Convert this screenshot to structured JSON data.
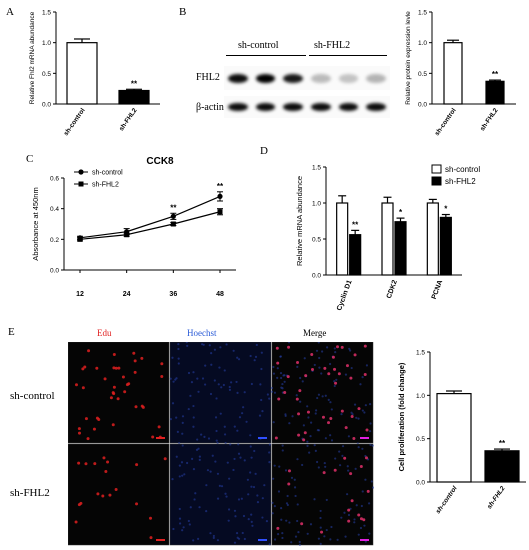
{
  "panels": {
    "A": "A",
    "B": "B",
    "C": "C",
    "D": "D",
    "E": "E"
  },
  "chart_data": [
    {
      "id": "A",
      "type": "bar",
      "categories": [
        "sh-control",
        "sh-FHL2"
      ],
      "values": [
        1.0,
        0.22
      ],
      "errors": [
        0.06,
        0.02
      ],
      "significance": [
        "",
        "**"
      ],
      "fills": [
        "#ffffff",
        "#000000"
      ],
      "ylabel": "Relative Fhl2 mRNA abundance",
      "ylim": [
        0,
        1.5
      ],
      "yticks": [
        "0.0",
        "0.5",
        "1.0",
        "1.5"
      ]
    },
    {
      "id": "B",
      "type": "bar",
      "categories": [
        "sh-control",
        "sh-FHL2"
      ],
      "values": [
        1.0,
        0.37
      ],
      "errors": [
        0.04,
        0.02
      ],
      "significance": [
        "",
        "**"
      ],
      "fills": [
        "#ffffff",
        "#000000"
      ],
      "ylabel": "Relative protein expression levle",
      "ylim": [
        0,
        1.5
      ],
      "yticks": [
        "0.0",
        "0.5",
        "1.0",
        "1.5"
      ]
    },
    {
      "id": "C",
      "type": "line",
      "title": "CCK8",
      "x": [
        "12",
        "24",
        "36",
        "48"
      ],
      "series": [
        {
          "name": "sh-control",
          "marker": "circle",
          "values": [
            0.21,
            0.25,
            0.35,
            0.48
          ],
          "errors": [
            0.01,
            0.02,
            0.02,
            0.03
          ]
        },
        {
          "name": "sh-FHL2",
          "marker": "square",
          "values": [
            0.2,
            0.23,
            0.3,
            0.38
          ],
          "errors": [
            0.01,
            0.01,
            0.01,
            0.02
          ]
        }
      ],
      "significance": [
        "",
        "",
        "**",
        "**"
      ],
      "ylabel": "Absorbance at 450nm",
      "ylim": [
        0.0,
        0.6
      ],
      "yticks": [
        "0.0",
        "0.2",
        "0.4",
        "0.6"
      ],
      "legend": "top-left"
    },
    {
      "id": "D",
      "type": "bar",
      "categories": [
        "Cyclin D1",
        "CDK2",
        "PCNA"
      ],
      "series": [
        {
          "name": "sh-control",
          "fill": "#ffffff",
          "values": [
            1.0,
            1.0,
            1.0
          ],
          "errors": [
            0.1,
            0.08,
            0.05
          ]
        },
        {
          "name": "sh-FHL2",
          "fill": "#000000",
          "values": [
            0.56,
            0.74,
            0.8
          ],
          "errors": [
            0.06,
            0.05,
            0.04
          ]
        }
      ],
      "significance": [
        "**",
        "*",
        "*"
      ],
      "ylabel": "Relative mRNA abundance",
      "ylim": [
        0.0,
        1.5
      ],
      "yticks": [
        "0.0",
        "0.5",
        "1.0",
        "1.5"
      ],
      "legend": "top-right"
    },
    {
      "id": "E",
      "type": "bar",
      "categories": [
        "sh-control",
        "sh-FHL2"
      ],
      "values": [
        1.02,
        0.36
      ],
      "errors": [
        0.03,
        0.02
      ],
      "significance": [
        "",
        "**"
      ],
      "fills": [
        "#ffffff",
        "#000000"
      ],
      "ylabel": "Cell proliferation (fold change)",
      "ylim": [
        0.0,
        1.5
      ],
      "yticks": [
        "0.0",
        "0.5",
        "1.0",
        "1.5"
      ]
    }
  ],
  "western_blot": {
    "groups": [
      "sh-control",
      "sh-FHL2"
    ],
    "rows": [
      "FHL2",
      "β-actin"
    ],
    "fhl2_band_intensity": [
      0.95,
      1.0,
      0.9,
      0.25,
      0.22,
      0.28
    ],
    "actin_band_intensity": [
      0.95,
      0.95,
      0.95,
      0.95,
      0.95,
      0.95
    ]
  },
  "micrographs": {
    "columns": [
      "Edu",
      "Hoechst",
      "Merge"
    ],
    "rows": [
      "sh-control",
      "sh-FHL2"
    ],
    "column_colors": [
      "#e02020",
      "#2a5bd7",
      "#d02090"
    ]
  }
}
